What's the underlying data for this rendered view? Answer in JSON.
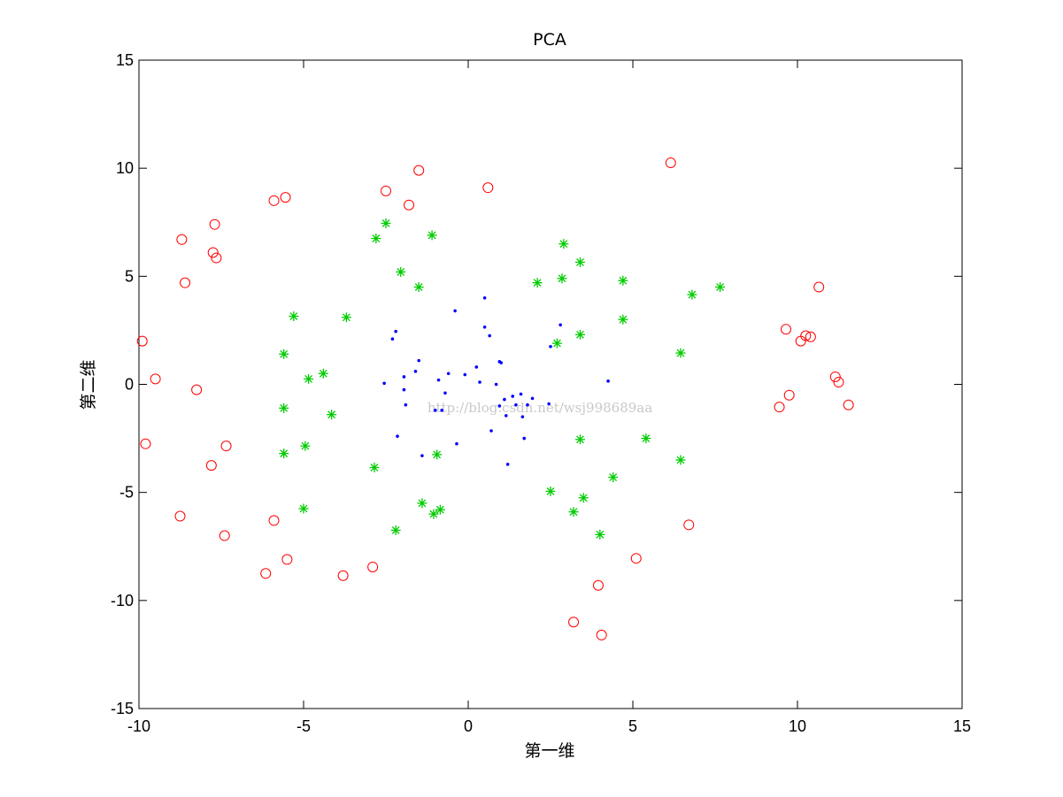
{
  "chart_data": {
    "type": "scatter",
    "title": "PCA",
    "xlabel": "第一维",
    "ylabel": "第二维",
    "xlim": [
      -10,
      15
    ],
    "ylim": [
      -15,
      15
    ],
    "xticks": [
      -10,
      -5,
      0,
      5,
      10,
      15
    ],
    "yticks": [
      -15,
      -10,
      -5,
      0,
      5,
      10,
      15
    ],
    "grid": false,
    "box": true,
    "watermark": "http://blog.csdn.net/wsj998689aa",
    "series": [
      {
        "marker": "circle",
        "color": "#ff0000",
        "points": [
          [
            -9.9,
            2.0
          ],
          [
            -9.5,
            0.25
          ],
          [
            -9.8,
            -2.75
          ],
          [
            -8.7,
            6.7
          ],
          [
            -8.6,
            4.7
          ],
          [
            -8.25,
            -0.25
          ],
          [
            -7.7,
            7.4
          ],
          [
            -7.75,
            6.1
          ],
          [
            -7.65,
            5.85
          ],
          [
            -7.8,
            -3.75
          ],
          [
            -7.35,
            -2.85
          ],
          [
            -8.75,
            -6.1
          ],
          [
            -7.4,
            -7.0
          ],
          [
            -5.9,
            8.5
          ],
          [
            -5.55,
            8.65
          ],
          [
            -5.9,
            -6.3
          ],
          [
            -6.15,
            -8.75
          ],
          [
            -5.5,
            -8.1
          ],
          [
            -3.8,
            -8.85
          ],
          [
            -2.9,
            -8.45
          ],
          [
            -2.5,
            8.95
          ],
          [
            -1.5,
            9.9
          ],
          [
            -1.8,
            8.3
          ],
          [
            0.6,
            9.1
          ],
          [
            6.15,
            10.25
          ],
          [
            10.65,
            4.5
          ],
          [
            9.65,
            2.55
          ],
          [
            10.1,
            2.0
          ],
          [
            10.25,
            2.25
          ],
          [
            10.4,
            2.2
          ],
          [
            11.15,
            0.35
          ],
          [
            11.25,
            0.1
          ],
          [
            11.55,
            -0.95
          ],
          [
            9.75,
            -0.5
          ],
          [
            9.45,
            -1.05
          ],
          [
            6.7,
            -6.5
          ],
          [
            5.1,
            -8.05
          ],
          [
            3.95,
            -9.3
          ],
          [
            3.2,
            -11.0
          ],
          [
            4.05,
            -11.6
          ]
        ]
      },
      {
        "marker": "star",
        "color": "#00cc00",
        "points": [
          [
            -5.3,
            3.15
          ],
          [
            -5.6,
            1.4
          ],
          [
            -4.85,
            0.25
          ],
          [
            -4.4,
            0.5
          ],
          [
            -4.15,
            -1.4
          ],
          [
            -5.6,
            -1.1
          ],
          [
            -5.6,
            -3.2
          ],
          [
            -4.95,
            -2.85
          ],
          [
            -5.0,
            -5.75
          ],
          [
            -3.7,
            3.1
          ],
          [
            -2.8,
            6.75
          ],
          [
            -2.5,
            7.45
          ],
          [
            -2.05,
            5.2
          ],
          [
            -1.5,
            4.5
          ],
          [
            -1.1,
            6.9
          ],
          [
            -2.85,
            -3.85
          ],
          [
            -2.2,
            -6.75
          ],
          [
            -1.4,
            -5.5
          ],
          [
            -1.05,
            -6.0
          ],
          [
            -0.85,
            -5.8
          ],
          [
            -0.95,
            -3.25
          ],
          [
            2.1,
            4.7
          ],
          [
            2.9,
            6.5
          ],
          [
            2.85,
            4.9
          ],
          [
            3.4,
            5.65
          ],
          [
            3.4,
            2.3
          ],
          [
            2.7,
            1.9
          ],
          [
            4.7,
            4.8
          ],
          [
            4.7,
            3.0
          ],
          [
            6.8,
            4.15
          ],
          [
            7.65,
            4.5
          ],
          [
            6.45,
            1.45
          ],
          [
            3.4,
            -2.55
          ],
          [
            2.5,
            -4.95
          ],
          [
            3.5,
            -5.25
          ],
          [
            3.2,
            -5.9
          ],
          [
            4.0,
            -6.95
          ],
          [
            4.4,
            -4.3
          ],
          [
            5.4,
            -2.5
          ],
          [
            6.45,
            -3.5
          ]
        ]
      },
      {
        "marker": "dot",
        "color": "#0000ff",
        "points": [
          [
            -2.3,
            2.1
          ],
          [
            -2.2,
            2.45
          ],
          [
            -1.6,
            0.6
          ],
          [
            -1.5,
            1.1
          ],
          [
            -2.55,
            0.05
          ],
          [
            -1.95,
            0.35
          ],
          [
            -1.95,
            -0.25
          ],
          [
            -1.9,
            -0.95
          ],
          [
            -2.15,
            -2.4
          ],
          [
            -1.4,
            -3.3
          ],
          [
            -0.4,
            3.4
          ],
          [
            -0.9,
            0.2
          ],
          [
            -0.6,
            0.5
          ],
          [
            -0.7,
            -0.4
          ],
          [
            -1.0,
            -1.2
          ],
          [
            -0.8,
            -1.2
          ],
          [
            -0.35,
            -2.75
          ],
          [
            -0.1,
            0.45
          ],
          [
            0.25,
            0.8
          ],
          [
            0.5,
            4.0
          ],
          [
            0.5,
            2.65
          ],
          [
            0.65,
            2.25
          ],
          [
            0.95,
            1.05
          ],
          [
            1.0,
            1.0
          ],
          [
            0.35,
            0.1
          ],
          [
            0.85,
            0.0
          ],
          [
            1.1,
            -0.7
          ],
          [
            1.35,
            -0.55
          ],
          [
            1.45,
            -0.95
          ],
          [
            0.95,
            -1.0
          ],
          [
            1.15,
            -1.45
          ],
          [
            0.7,
            -2.15
          ],
          [
            1.6,
            -0.45
          ],
          [
            1.95,
            -0.65
          ],
          [
            1.8,
            -0.95
          ],
          [
            1.65,
            -1.5
          ],
          [
            1.7,
            -2.5
          ],
          [
            1.2,
            -3.7
          ],
          [
            2.45,
            -0.9
          ],
          [
            2.5,
            1.75
          ],
          [
            2.8,
            2.75
          ],
          [
            4.25,
            0.15
          ]
        ]
      }
    ]
  }
}
